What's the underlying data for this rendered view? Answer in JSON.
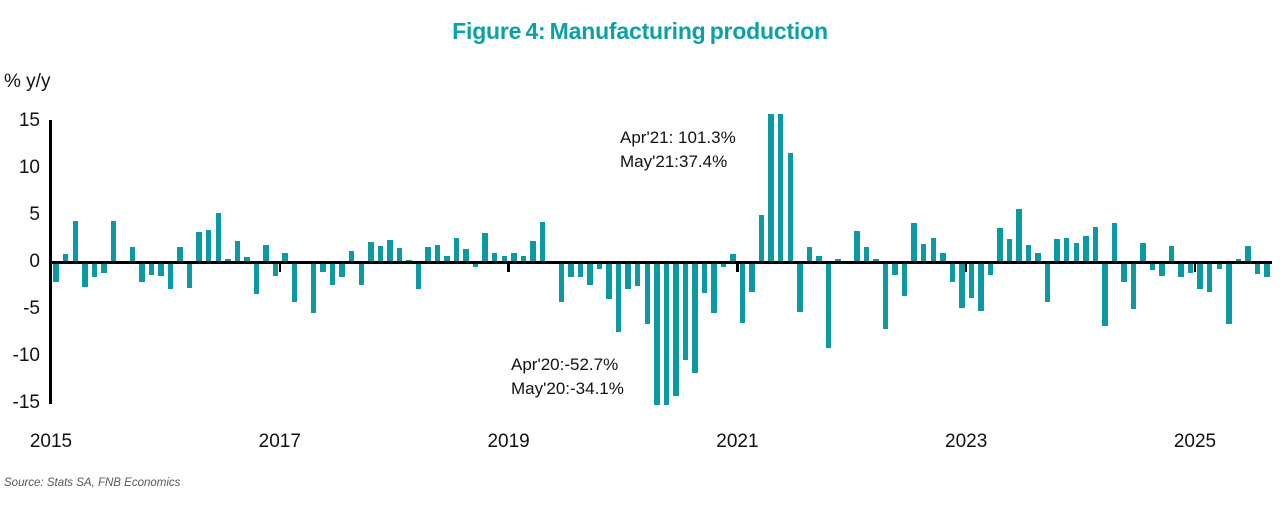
{
  "chart_data": {
    "type": "bar",
    "title": "Figure 4: Manufacturing production",
    "ylabel": "% y/y",
    "xlabel": "",
    "y_ticks": [
      15,
      10,
      5,
      0,
      -5,
      -10,
      -15
    ],
    "ylim": [
      -15,
      15
    ],
    "x_tick_labels": [
      "2015",
      "2017",
      "2019",
      "2021",
      "2023",
      "2025"
    ],
    "frequency": "monthly",
    "start": "2015-01",
    "end": "2025-08",
    "grid": false,
    "legend": false,
    "bar_color": "#0d99a2",
    "title_color": "#0ba0aa",
    "series": [
      {
        "name": "Manufacturing production, % y/y",
        "values_by_year": {
          "2015": [
            -2.1,
            0.9,
            4.4,
            -2.7,
            -1.6,
            -1.2,
            4.4,
            0.0,
            1.6,
            -2.1,
            -1.4,
            -1.5
          ],
          "2016": [
            -2.9,
            1.6,
            -2.8,
            3.2,
            3.4,
            5.2,
            0.3,
            2.2,
            0.5,
            -3.4,
            1.8,
            -1.5
          ],
          "2017": [
            1.0,
            -4.3,
            0.0,
            -5.4,
            -1.1,
            -2.4,
            -1.6,
            1.2,
            -2.4,
            2.1,
            1.7,
            2.3
          ],
          "2018": [
            1.5,
            0.2,
            -2.9,
            1.6,
            1.8,
            0.6,
            2.6,
            1.4,
            -0.5,
            3.1,
            1.0,
            0.6
          ],
          "2019": [
            1.0,
            0.6,
            2.2,
            4.3,
            0.0,
            -4.3,
            -1.6,
            -1.6,
            -2.4,
            -0.7,
            -3.9,
            -7.4
          ],
          "2020": [
            -2.9,
            -2.5,
            -6.6,
            -52.7,
            -34.1,
            -14.3,
            -10.4,
            -11.8,
            -3.3,
            -5.4,
            -0.5,
            0.9
          ],
          "2021": [
            -6.5,
            -3.2,
            5.0,
            101.3,
            37.4,
            11.6,
            -5.3,
            1.6,
            0.6,
            -9.2,
            0.3,
            0.0
          ],
          "2022": [
            3.3,
            1.6,
            0.3,
            -7.1,
            -1.4,
            -3.6,
            4.1,
            1.9,
            2.6,
            1.0,
            -2.1,
            -4.9
          ],
          "2023": [
            -3.8,
            -5.2,
            -1.4,
            3.6,
            2.5,
            5.6,
            1.8,
            1.0,
            -4.3,
            2.5,
            2.6,
            2.0
          ],
          "2024": [
            2.8,
            3.7,
            -6.8,
            4.1,
            -2.1,
            -5.0,
            2.0,
            -0.9,
            -1.5,
            1.7,
            -1.6,
            -1.2
          ],
          "2025": [
            -2.9,
            -3.2,
            -0.7,
            -6.6,
            0.3,
            1.7,
            -1.3,
            -1.6
          ]
        }
      }
    ],
    "annotations": {
      "top": [
        "Apr'21: 101.3%",
        "May'21:37.4%"
      ],
      "bottom": [
        "Apr'20:-52.7%",
        "May'20:-34.1%"
      ]
    }
  },
  "source": "Source: Stats SA, FNB Economics"
}
